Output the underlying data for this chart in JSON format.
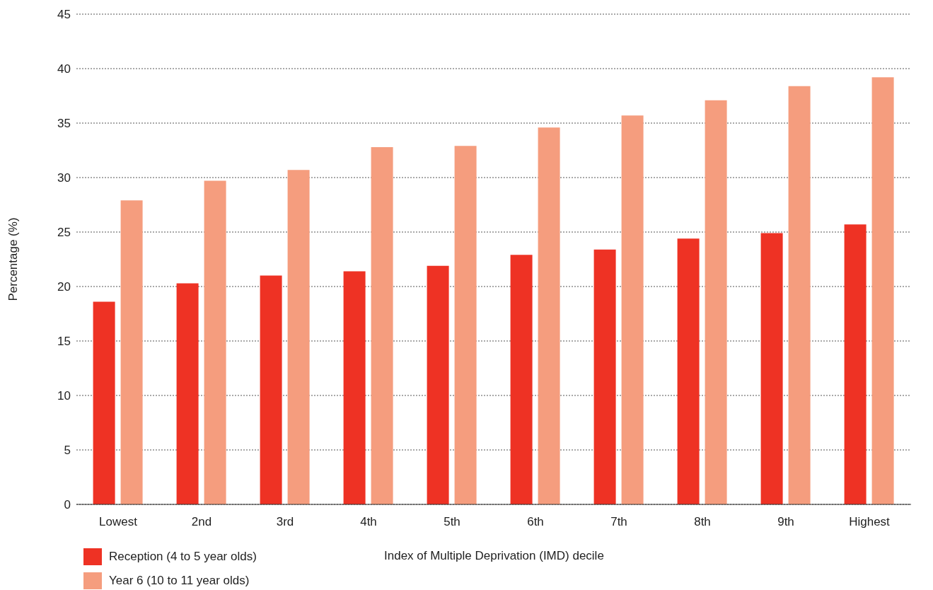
{
  "chart_data": {
    "type": "bar",
    "xlabel": "Index of Multiple Deprivation (IMD) decile",
    "ylabel": "Percentage (%)",
    "categories": [
      "Lowest",
      "2nd",
      "3rd",
      "4th",
      "5th",
      "6th",
      "7th",
      "8th",
      "9th",
      "Highest"
    ],
    "series": [
      {
        "name": "Reception (4 to 5 year olds)",
        "color": "#ee3224",
        "values": [
          18.6,
          20.3,
          21.0,
          21.4,
          21.9,
          22.9,
          23.4,
          24.4,
          24.9,
          25.7
        ]
      },
      {
        "name": "Year 6 (10 to 11 year olds)",
        "color": "#f59d7e",
        "values": [
          27.9,
          29.7,
          30.7,
          32.8,
          32.9,
          34.6,
          35.7,
          37.1,
          38.4,
          39.2
        ]
      }
    ],
    "ylim": [
      0,
      45
    ],
    "yticks": [
      0,
      5,
      10,
      15,
      20,
      25,
      30,
      35,
      40,
      45
    ],
    "grid": "y",
    "legend": "bottom left"
  }
}
